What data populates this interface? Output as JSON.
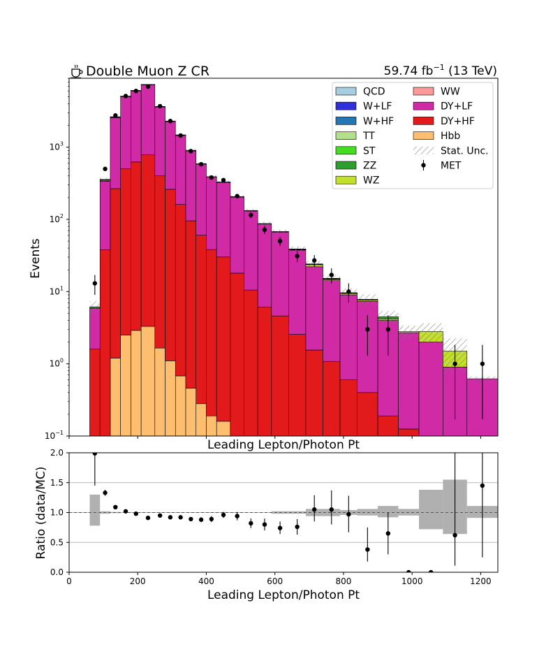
{
  "header": {
    "title": "Double Muon Z CR",
    "lumi_text": "59.74 fb",
    "lumi_exp": "−1",
    "energy_text": " (13 TeV)"
  },
  "icon": "coffee-icon",
  "chart_data": [
    {
      "type": "bar",
      "stacked": true,
      "yscale": "log",
      "xlabel": "Leading Lepton/Photon Pt",
      "ylabel": "Events",
      "xlim": [
        0,
        1250
      ],
      "ylim": [
        0.1,
        9000
      ],
      "y_ticks": [
        {
          "base": "10",
          "exp": "−1",
          "value": 0.1
        },
        {
          "base": "10",
          "exp": "0",
          "value": 1
        },
        {
          "base": "10",
          "exp": "1",
          "value": 10
        },
        {
          "base": "10",
          "exp": "2",
          "value": 100
        },
        {
          "base": "10",
          "exp": "3",
          "value": 1000
        }
      ],
      "legend_position": "top-right",
      "legend": [
        {
          "label": "QCD",
          "color": "#a6cee3",
          "kind": "patch"
        },
        {
          "label": "WW",
          "color": "#fb9a99",
          "kind": "patch"
        },
        {
          "label": "W+LF",
          "color": "#3030d8",
          "kind": "patch"
        },
        {
          "label": "DY+LF",
          "color": "#d02aa6",
          "kind": "patch"
        },
        {
          "label": "W+HF",
          "color": "#2277b4",
          "kind": "patch"
        },
        {
          "label": "DY+HF",
          "color": "#e31a1c",
          "kind": "patch"
        },
        {
          "label": "TT",
          "color": "#b2df8a",
          "kind": "patch"
        },
        {
          "label": "Hbb",
          "color": "#fdbf6f",
          "kind": "patch"
        },
        {
          "label": "ST",
          "color": "#44dd22",
          "kind": "patch"
        },
        {
          "label": "Stat. Unc.",
          "color": "#888888",
          "kind": "hatch"
        },
        {
          "label": "ZZ",
          "color": "#2ca02c",
          "kind": "patch"
        },
        {
          "label": "MET",
          "color": "#000000",
          "kind": "marker"
        },
        {
          "label": "WZ",
          "color": "#c5e02a",
          "kind": "patch"
        }
      ],
      "bins": [
        [
          60,
          90
        ],
        [
          90,
          120
        ],
        [
          120,
          150
        ],
        [
          150,
          180
        ],
        [
          180,
          210
        ],
        [
          210,
          250
        ],
        [
          250,
          280
        ],
        [
          280,
          310
        ],
        [
          310,
          340
        ],
        [
          340,
          370
        ],
        [
          370,
          400
        ],
        [
          400,
          430
        ],
        [
          430,
          470
        ],
        [
          470,
          510
        ],
        [
          510,
          550
        ],
        [
          550,
          590
        ],
        [
          590,
          640
        ],
        [
          640,
          690
        ],
        [
          690,
          740
        ],
        [
          740,
          790
        ],
        [
          790,
          840
        ],
        [
          840,
          900
        ],
        [
          900,
          960
        ],
        [
          960,
          1020
        ],
        [
          1020,
          1090
        ],
        [
          1090,
          1160
        ],
        [
          1160,
          1250
        ]
      ],
      "series": [
        {
          "name": "Hbb",
          "color": "#fdbf6f",
          "values": [
            0,
            0,
            1.2,
            2.5,
            2.9,
            3.3,
            1.65,
            1.1,
            0.68,
            0.46,
            0.28,
            0.19,
            0.16,
            0,
            0,
            0,
            0,
            0,
            0,
            0,
            0,
            0,
            0,
            0,
            0,
            0,
            0
          ]
        },
        {
          "name": "DY+HF",
          "color": "#e31a1c",
          "values": [
            1.6,
            38,
            265,
            500,
            620,
            780,
            400,
            260,
            160,
            95,
            60,
            38,
            30,
            18,
            10.5,
            6.1,
            4.6,
            2.55,
            1.55,
            1.08,
            0.6,
            0.4,
            0.19,
            0.125,
            0,
            0,
            0
          ]
        },
        {
          "name": "DY+LF",
          "color": "#d02aa6",
          "values": [
            4.3,
            300,
            2300,
            4500,
            5400,
            6500,
            3200,
            2000,
            1290,
            790,
            520,
            345,
            295,
            185,
            120,
            80,
            62,
            35,
            20.5,
            13.4,
            8.4,
            6.9,
            3.8,
            2.57,
            2.0,
            0.9,
            0.62
          ]
        },
        {
          "name": "WZ",
          "color": "#c5e02a",
          "values": [
            0,
            0,
            0,
            0,
            0,
            0,
            0,
            0,
            0,
            0,
            0,
            0,
            0,
            0,
            0,
            0,
            0,
            0.5,
            1.5,
            0.4,
            0.4,
            0.3,
            0.2,
            0.1,
            0.8,
            0.6,
            0
          ]
        },
        {
          "name": "ZZ",
          "color": "#2ca02c",
          "values": [
            0.25,
            5,
            20,
            25,
            30,
            30,
            15,
            10,
            7,
            5,
            3,
            2,
            2,
            1.5,
            1,
            0.6,
            0.5,
            0.3,
            0.3,
            0.2,
            0.15,
            0.1,
            0.3,
            0,
            0,
            0,
            0
          ]
        },
        {
          "name": "TT",
          "color": "#b2df8a",
          "values": [
            0,
            10,
            30,
            40,
            40,
            40,
            30,
            20,
            15,
            10,
            5,
            3,
            2,
            1.5,
            1,
            0.5,
            0.5,
            0.5,
            0.3,
            0.2,
            0.1,
            0.1,
            0,
            0,
            0,
            0,
            0
          ]
        },
        {
          "name": "W+HF",
          "color": "#2277b4",
          "values": [
            0,
            5,
            20,
            30,
            30,
            30,
            20,
            10,
            8,
            5,
            3,
            2,
            1,
            0.5,
            0.3,
            0.2,
            0.2,
            0.1,
            0,
            0,
            0,
            0,
            0,
            0,
            0,
            0,
            0
          ]
        }
      ],
      "stat_unc": [
        0.2,
        0.06,
        0.02,
        0.015,
        0.015,
        0.015,
        0.02,
        0.02,
        0.025,
        0.03,
        0.03,
        0.04,
        0.04,
        0.05,
        0.05,
        0.06,
        0.06,
        0.08,
        0.1,
        0.12,
        0.15,
        0.18,
        0.2,
        0.2,
        0.3,
        0.5,
        0.08
      ],
      "data_points": [
        {
          "x": 75,
          "y": 13,
          "lo": 9,
          "hi": 17
        },
        {
          "x": 105,
          "y": 500,
          "lo": 478,
          "hi": 522
        },
        {
          "x": 135,
          "y": 2750,
          "lo": 2700,
          "hi": 2800
        },
        {
          "x": 165,
          "y": 5100,
          "lo": 5030,
          "hi": 5170
        },
        {
          "x": 195,
          "y": 6000,
          "lo": 5920,
          "hi": 6080
        },
        {
          "x": 230,
          "y": 6900,
          "lo": 6820,
          "hi": 6980
        },
        {
          "x": 265,
          "y": 3700,
          "lo": 3640,
          "hi": 3760
        },
        {
          "x": 295,
          "y": 2300,
          "lo": 2250,
          "hi": 2350
        },
        {
          "x": 325,
          "y": 1450,
          "lo": 1410,
          "hi": 1490
        },
        {
          "x": 355,
          "y": 880,
          "lo": 850,
          "hi": 910
        },
        {
          "x": 385,
          "y": 580,
          "lo": 556,
          "hi": 604
        },
        {
          "x": 415,
          "y": 380,
          "lo": 360,
          "hi": 400
        },
        {
          "x": 450,
          "y": 350,
          "lo": 331,
          "hi": 369
        },
        {
          "x": 490,
          "y": 210,
          "lo": 196,
          "hi": 224
        },
        {
          "x": 530,
          "y": 115,
          "lo": 104,
          "hi": 126
        },
        {
          "x": 570,
          "y": 72,
          "lo": 63,
          "hi": 81
        },
        {
          "x": 615,
          "y": 50,
          "lo": 43,
          "hi": 57
        },
        {
          "x": 665,
          "y": 31,
          "lo": 25.5,
          "hi": 36.5
        },
        {
          "x": 715,
          "y": 27,
          "lo": 22,
          "hi": 32
        },
        {
          "x": 765,
          "y": 17,
          "lo": 13,
          "hi": 21
        },
        {
          "x": 815,
          "y": 10,
          "lo": 7,
          "hi": 13
        },
        {
          "x": 870,
          "y": 3,
          "lo": 1.3,
          "hi": 4.7
        },
        {
          "x": 930,
          "y": 3,
          "lo": 1.3,
          "hi": 4.7
        },
        {
          "x": 1125,
          "y": 1,
          "lo": 0.17,
          "hi": 1.83
        },
        {
          "x": 1205,
          "y": 1,
          "lo": 0.17,
          "hi": 1.83
        }
      ]
    },
    {
      "type": "scatter",
      "xlabel": "Leading Lepton/Photon Pt",
      "ylabel": "Ratio (data/MC)",
      "xlim": [
        0,
        1250
      ],
      "ylim": [
        0,
        2
      ],
      "x_ticks": [
        "0",
        "200",
        "400",
        "600",
        "800",
        "1000",
        "1200"
      ],
      "y_ticks": [
        "0.0",
        "0.5",
        "1.0",
        "1.5",
        "2.0"
      ],
      "grid_lines_y": [
        0.5,
        1.0,
        1.5
      ],
      "unc_bands": [
        {
          "x0": 60,
          "x1": 90,
          "lo": 0.78,
          "hi": 1.3
        },
        {
          "x0": 90,
          "x1": 120,
          "lo": 0.98,
          "hi": 1.02
        },
        {
          "x0": 120,
          "x1": 150,
          "lo": 0.99,
          "hi": 1.01
        },
        {
          "x0": 150,
          "x1": 510,
          "lo": 0.995,
          "hi": 1.005
        },
        {
          "x0": 590,
          "x1": 640,
          "lo": 0.98,
          "hi": 1.02
        },
        {
          "x0": 640,
          "x1": 690,
          "lo": 0.98,
          "hi": 1.02
        },
        {
          "x0": 690,
          "x1": 740,
          "lo": 0.94,
          "hi": 1.06
        },
        {
          "x0": 740,
          "x1": 790,
          "lo": 0.94,
          "hi": 1.06
        },
        {
          "x0": 790,
          "x1": 840,
          "lo": 0.96,
          "hi": 1.04
        },
        {
          "x0": 840,
          "x1": 900,
          "lo": 0.95,
          "hi": 1.06
        },
        {
          "x0": 900,
          "x1": 960,
          "lo": 0.92,
          "hi": 1.11
        },
        {
          "x0": 960,
          "x1": 1020,
          "lo": 0.95,
          "hi": 1.06
        },
        {
          "x0": 1020,
          "x1": 1090,
          "lo": 0.72,
          "hi": 1.38
        },
        {
          "x0": 1090,
          "x1": 1160,
          "lo": 0.64,
          "hi": 1.55
        },
        {
          "x0": 1160,
          "x1": 1250,
          "lo": 0.91,
          "hi": 1.11
        }
      ],
      "points": [
        {
          "x": 75,
          "y": 1.99,
          "lo": 1.45,
          "hi": 2.0
        },
        {
          "x": 105,
          "y": 1.33,
          "lo": 1.28,
          "hi": 1.38
        },
        {
          "x": 135,
          "y": 1.09,
          "lo": 1.07,
          "hi": 1.11
        },
        {
          "x": 165,
          "y": 1.02,
          "lo": 1.0,
          "hi": 1.04
        },
        {
          "x": 195,
          "y": 0.98,
          "lo": 0.96,
          "hi": 1.0
        },
        {
          "x": 230,
          "y": 0.91,
          "lo": 0.9,
          "hi": 0.93
        },
        {
          "x": 265,
          "y": 0.95,
          "lo": 0.93,
          "hi": 0.97
        },
        {
          "x": 295,
          "y": 0.92,
          "lo": 0.9,
          "hi": 0.94
        },
        {
          "x": 325,
          "y": 0.92,
          "lo": 0.9,
          "hi": 0.95
        },
        {
          "x": 355,
          "y": 0.89,
          "lo": 0.86,
          "hi": 0.92
        },
        {
          "x": 385,
          "y": 0.88,
          "lo": 0.84,
          "hi": 0.92
        },
        {
          "x": 415,
          "y": 0.89,
          "lo": 0.84,
          "hi": 0.94
        },
        {
          "x": 450,
          "y": 0.96,
          "lo": 0.91,
          "hi": 1.01
        },
        {
          "x": 490,
          "y": 0.94,
          "lo": 0.87,
          "hi": 1.01
        },
        {
          "x": 530,
          "y": 0.82,
          "lo": 0.74,
          "hi": 0.9
        },
        {
          "x": 570,
          "y": 0.8,
          "lo": 0.7,
          "hi": 0.9
        },
        {
          "x": 615,
          "y": 0.74,
          "lo": 0.64,
          "hi": 0.85
        },
        {
          "x": 665,
          "y": 0.76,
          "lo": 0.63,
          "hi": 0.89
        },
        {
          "x": 715,
          "y": 1.05,
          "lo": 0.85,
          "hi": 1.29
        },
        {
          "x": 765,
          "y": 1.05,
          "lo": 0.8,
          "hi": 1.37
        },
        {
          "x": 815,
          "y": 0.97,
          "lo": 0.67,
          "hi": 1.28
        },
        {
          "x": 870,
          "y": 0.38,
          "lo": 0.18,
          "hi": 0.75
        },
        {
          "x": 930,
          "y": 0.65,
          "lo": 0.3,
          "hi": 1.0
        },
        {
          "x": 990,
          "y": 0.0,
          "lo": 0.0,
          "hi": 0.0
        },
        {
          "x": 1055,
          "y": 0.0,
          "lo": 0.0,
          "hi": 0.0
        },
        {
          "x": 1125,
          "y": 0.62,
          "lo": 0.11,
          "hi": 2.0
        },
        {
          "x": 1205,
          "y": 1.45,
          "lo": 0.25,
          "hi": 2.0
        }
      ]
    }
  ]
}
